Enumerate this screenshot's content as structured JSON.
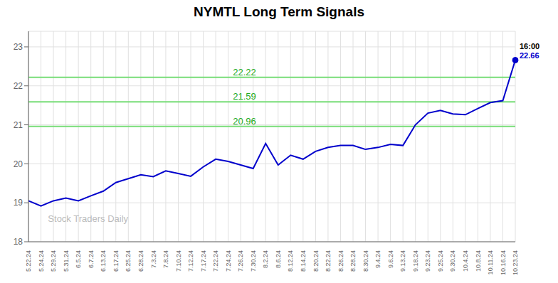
{
  "chart_data": {
    "type": "line",
    "title": "NYMTL Long Term Signals",
    "categories": [
      "5.22.24",
      "5.24.24",
      "5.29.24",
      "5.31.24",
      "6.5.24",
      "6.7.24",
      "6.13.24",
      "6.17.24",
      "6.25.24",
      "6.28.24",
      "7.3.24",
      "7.8.24",
      "7.10.24",
      "7.12.24",
      "7.17.24",
      "7.22.24",
      "7.24.24",
      "7.26.24",
      "7.30.24",
      "8.2.24",
      "8.6.24",
      "8.12.24",
      "8.14.24",
      "8.20.24",
      "8.22.24",
      "8.26.24",
      "8.28.24",
      "8.30.24",
      "9.4.24",
      "9.6.24",
      "9.13.24",
      "9.18.24",
      "9.23.24",
      "9.25.24",
      "9.30.24",
      "10.4.24",
      "10.8.24",
      "10.11.24",
      "10.16.24",
      "10.23.24"
    ],
    "values": [
      19.05,
      18.92,
      19.05,
      19.12,
      19.05,
      19.18,
      19.3,
      19.52,
      19.62,
      19.72,
      19.67,
      19.82,
      19.75,
      19.68,
      19.92,
      20.12,
      20.06,
      19.97,
      19.88,
      20.52,
      19.97,
      20.22,
      20.12,
      20.32,
      20.42,
      20.47,
      20.47,
      20.37,
      20.42,
      20.5,
      20.47,
      21.0,
      21.3,
      21.37,
      21.28,
      21.26,
      21.42,
      21.57,
      21.62,
      22.66
    ],
    "color": "#0000cc",
    "ylim": [
      18.0,
      23.4
    ],
    "yticks": [
      18,
      19,
      20,
      21,
      22,
      23
    ],
    "grid": true,
    "reference_lines": {
      "values": [
        20.96,
        21.59,
        22.22
      ],
      "color": "#77dd77",
      "label_color": "#22aa22"
    },
    "annotations": [
      {
        "text": "16:00",
        "color": "#000000"
      },
      {
        "text": "22.66",
        "color": "#0000cc"
      }
    ],
    "watermark": {
      "text": "Stock Traders Daily",
      "color": "#bbbbbb"
    }
  }
}
